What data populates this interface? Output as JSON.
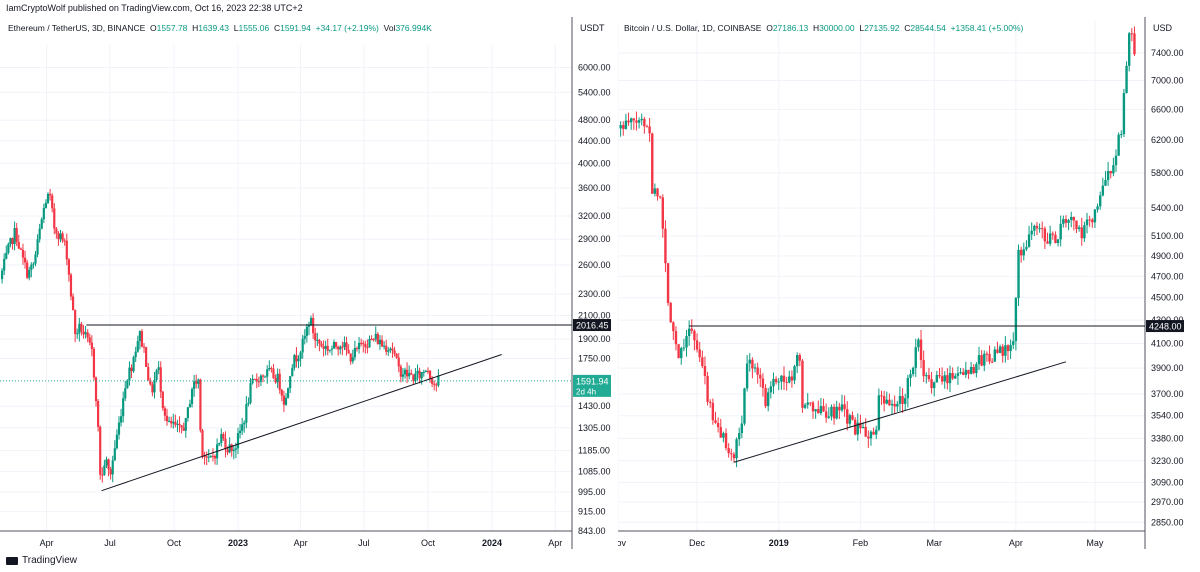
{
  "header": {
    "text": "IamCryptoWolf published on TradingView.com, Oct 16, 2023 22:38 UTC+2"
  },
  "footer": {
    "brand": "TradingView",
    "logo_icon": "tradingview-logo-icon"
  },
  "colors": {
    "up": "#089981",
    "down": "#f23645",
    "grid": "#f0f3fa",
    "line": "#131722",
    "accent": "#22ab94"
  },
  "left": {
    "legend": {
      "symbol": "Ethereum / TetherUS, 3D, BINANCE",
      "o_label": "O",
      "o": "1557.78",
      "h_label": "H",
      "h": "1639.43",
      "l_label": "L",
      "l": "1555.06",
      "c_label": "C",
      "c": "1591.94",
      "chg": "+34.17 (+2.19%)",
      "vol_label": "Vol",
      "vol": "376.994K"
    },
    "currency": "USDT",
    "price_badge": "1591.94",
    "countdown": "2d 4h",
    "resistance_label": "2016.45"
  },
  "right": {
    "legend": {
      "symbol": "Bitcoin / U.S. Dollar, 1D, COINBASE",
      "o_label": "O",
      "o": "27186.13",
      "h_label": "H",
      "h": "30000.00",
      "l_label": "L",
      "l": "27135.92",
      "c_label": "C",
      "c": "28544.54",
      "chg": "+1358.41 (+5.00%)"
    },
    "currency": "USD",
    "resistance_label": "4248.00"
  },
  "chart_data": [
    {
      "type": "candlestick",
      "title": "Ethereum / TetherUS, 3D, BINANCE",
      "log_scale": true,
      "ylim": [
        843,
        6600
      ],
      "y_ticks": [
        6000,
        5400,
        4800,
        4400,
        4000,
        3600,
        3200,
        2900,
        2600,
        2300,
        2100,
        1900,
        1750,
        1430,
        1305,
        1185,
        1085,
        995,
        915,
        843
      ],
      "y_tick_labels": [
        "6000.00",
        "5400.00",
        "4800.00",
        "4400.00",
        "4000.00",
        "3600.00",
        "3200.00",
        "2900.00",
        "2600.00",
        "2300.00",
        "2100.00",
        "1900.00",
        "1750.00",
        "1430.00",
        "1305.00",
        "1185.00",
        "1085.00",
        "995.00",
        "915.00",
        "843.00"
      ],
      "x_labels": [
        "Apr",
        "Jul",
        "Oct",
        "2023",
        "Apr",
        "Jul",
        "Oct",
        "2024",
        "Apr"
      ],
      "x_label_dates": [
        "2022-04-01",
        "2022-07-01",
        "2022-10-01",
        "2023-01-01",
        "2023-04-01",
        "2023-07-01",
        "2023-10-01",
        "2024-01-01",
        "2024-04-01"
      ],
      "x_range": [
        "2022-01-24",
        "2024-04-25"
      ],
      "close_series": [
        [
          "2022-01-24",
          2450
        ],
        [
          "2022-02-06",
          2800
        ],
        [
          "2022-02-15",
          3000
        ],
        [
          "2022-02-24",
          2700
        ],
        [
          "2022-03-05",
          2500
        ],
        [
          "2022-03-14",
          2620
        ],
        [
          "2022-03-22",
          3000
        ],
        [
          "2022-03-30",
          3400
        ],
        [
          "2022-04-05",
          3500
        ],
        [
          "2022-04-12",
          3050
        ],
        [
          "2022-04-20",
          2950
        ],
        [
          "2022-04-29",
          2800
        ],
        [
          "2022-05-06",
          2300
        ],
        [
          "2022-05-12",
          1950
        ],
        [
          "2022-05-20",
          2000
        ],
        [
          "2022-05-28",
          1900
        ],
        [
          "2022-06-05",
          1800
        ],
        [
          "2022-06-12",
          1450
        ],
        [
          "2022-06-18",
          1020
        ],
        [
          "2022-06-24",
          1150
        ],
        [
          "2022-07-01",
          1060
        ],
        [
          "2022-07-07",
          1180
        ],
        [
          "2022-07-15",
          1350
        ],
        [
          "2022-07-24",
          1600
        ],
        [
          "2022-08-01",
          1700
        ],
        [
          "2022-08-12",
          1950
        ],
        [
          "2022-08-20",
          1800
        ],
        [
          "2022-08-29",
          1500
        ],
        [
          "2022-09-08",
          1700
        ],
        [
          "2022-09-15",
          1450
        ],
        [
          "2022-09-22",
          1320
        ],
        [
          "2022-09-30",
          1320
        ],
        [
          "2022-10-09",
          1290
        ],
        [
          "2022-10-18",
          1330
        ],
        [
          "2022-10-27",
          1550
        ],
        [
          "2022-11-05",
          1600
        ],
        [
          "2022-11-09",
          1200
        ],
        [
          "2022-11-20",
          1130
        ],
        [
          "2022-11-30",
          1180
        ],
        [
          "2022-12-08",
          1260
        ],
        [
          "2022-12-17",
          1200
        ],
        [
          "2022-12-28",
          1200
        ],
        [
          "2023-01-10",
          1360
        ],
        [
          "2023-01-20",
          1560
        ],
        [
          "2023-02-01",
          1620
        ],
        [
          "2023-02-15",
          1650
        ],
        [
          "2023-02-28",
          1600
        ],
        [
          "2023-03-10",
          1440
        ],
        [
          "2023-03-18",
          1700
        ],
        [
          "2023-03-28",
          1780
        ],
        [
          "2023-04-05",
          1870
        ],
        [
          "2023-04-14",
          2080
        ],
        [
          "2023-04-22",
          1900
        ],
        [
          "2023-05-01",
          1850
        ],
        [
          "2023-05-15",
          1820
        ],
        [
          "2023-05-30",
          1880
        ],
        [
          "2023-06-10",
          1760
        ],
        [
          "2023-06-20",
          1800
        ],
        [
          "2023-06-30",
          1880
        ],
        [
          "2023-07-10",
          1880
        ],
        [
          "2023-07-18",
          1910
        ],
        [
          "2023-07-28",
          1850
        ],
        [
          "2023-08-10",
          1840
        ],
        [
          "2023-08-20",
          1670
        ],
        [
          "2023-08-30",
          1640
        ],
        [
          "2023-09-10",
          1620
        ],
        [
          "2023-09-20",
          1630
        ],
        [
          "2023-09-30",
          1690
        ],
        [
          "2023-10-05",
          1620
        ],
        [
          "2023-10-12",
          1560
        ],
        [
          "2023-10-16",
          1591.94
        ]
      ],
      "annotations": [
        {
          "type": "horizontal_line",
          "label": "2016.45",
          "value": 2016.45,
          "from": "2022-05-28",
          "to": "right_edge"
        },
        {
          "type": "trendline",
          "points": [
            [
              "2022-06-19",
              1000
            ],
            [
              "2024-01-15",
              1780
            ]
          ]
        },
        {
          "type": "price_line",
          "label": "1591.94",
          "value": 1591.94,
          "style": "dotted",
          "color": "#22ab94"
        }
      ]
    },
    {
      "type": "candlestick",
      "title": "Bitcoin / U.S. Dollar, 1D, COINBASE",
      "log_scale": true,
      "ylim": [
        2800,
        7900
      ],
      "y_ticks": [
        7400,
        7000,
        6600,
        6200,
        5800,
        5400,
        5100,
        4900,
        4700,
        4500,
        4300,
        4100,
        3900,
        3700,
        3540,
        3380,
        3230,
        3090,
        2970,
        2850
      ],
      "y_tick_labels": [
        "7400.00",
        "7000.00",
        "6600.00",
        "6200.00",
        "5800.00",
        "5400.00",
        "5100.00",
        "4900.00",
        "4700.00",
        "4500.00",
        "4300.00",
        "4100.00",
        "3900.00",
        "3700.00",
        "3540.00",
        "3380.00",
        "3230.00",
        "3090.00",
        "2970.00",
        "2850.00"
      ],
      "x_labels": [
        "Nov",
        "Dec",
        "2019",
        "Feb",
        "Mar",
        "Apr",
        "May"
      ],
      "x_label_dates": [
        "2018-11-01",
        "2018-12-01",
        "2019-01-01",
        "2019-02-01",
        "2019-03-01",
        "2019-04-01",
        "2019-05-01"
      ],
      "x_range": [
        "2018-11-01",
        "2019-05-20"
      ],
      "close_series": [
        [
          "2018-11-01",
          6350
        ],
        [
          "2018-11-06",
          6420
        ],
        [
          "2018-11-10",
          6450
        ],
        [
          "2018-11-13",
          6350
        ],
        [
          "2018-11-14",
          5600
        ],
        [
          "2018-11-17",
          5550
        ],
        [
          "2018-11-19",
          4800
        ],
        [
          "2018-11-20",
          4450
        ],
        [
          "2018-11-24",
          4000
        ],
        [
          "2018-11-28",
          4250
        ],
        [
          "2018-12-03",
          3900
        ],
        [
          "2018-12-07",
          3500
        ],
        [
          "2018-12-12",
          3350
        ],
        [
          "2018-12-15",
          3250
        ],
        [
          "2018-12-18",
          3500
        ],
        [
          "2018-12-20",
          3950
        ],
        [
          "2018-12-23",
          3950
        ],
        [
          "2018-12-27",
          3650
        ],
        [
          "2018-12-30",
          3850
        ],
        [
          "2019-01-05",
          3790
        ],
        [
          "2019-01-09",
          4000
        ],
        [
          "2019-01-10",
          3620
        ],
        [
          "2019-01-15",
          3580
        ],
        [
          "2019-01-20",
          3550
        ],
        [
          "2019-01-25",
          3570
        ],
        [
          "2019-01-30",
          3450
        ],
        [
          "2019-02-03",
          3420
        ],
        [
          "2019-02-07",
          3400
        ],
        [
          "2019-02-08",
          3650
        ],
        [
          "2019-02-13",
          3600
        ],
        [
          "2019-02-17",
          3650
        ],
        [
          "2019-02-23",
          4100
        ],
        [
          "2019-02-25",
          3800
        ],
        [
          "2019-03-03",
          3800
        ],
        [
          "2019-03-08",
          3850
        ],
        [
          "2019-03-15",
          3900
        ],
        [
          "2019-03-21",
          4000
        ],
        [
          "2019-03-27",
          4020
        ],
        [
          "2019-03-31",
          4100
        ],
        [
          "2019-04-02",
          4900
        ],
        [
          "2019-04-08",
          5200
        ],
        [
          "2019-04-15",
          5050
        ],
        [
          "2019-04-21",
          5300
        ],
        [
          "2019-04-26",
          5100
        ],
        [
          "2019-05-01",
          5350
        ],
        [
          "2019-05-08",
          5950
        ],
        [
          "2019-05-11",
          6300
        ],
        [
          "2019-05-14",
          7800
        ],
        [
          "2019-05-16",
          7400
        ]
      ],
      "annotations": [
        {
          "type": "horizontal_line",
          "label": "4248.00",
          "value": 4248,
          "from": "2018-11-28",
          "to": "right_edge"
        },
        {
          "type": "trendline",
          "points": [
            [
              "2018-12-15",
              3220
            ],
            [
              "2019-04-20",
              3950
            ]
          ]
        }
      ]
    }
  ]
}
